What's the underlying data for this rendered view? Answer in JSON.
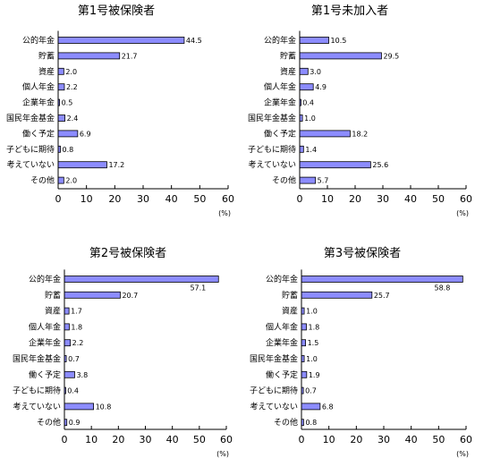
{
  "unit_label": "(%)",
  "chart_data": [
    {
      "type": "bar",
      "orientation": "horizontal",
      "title": "第1号被保険者",
      "categories": [
        "公的年金",
        "貯蓄",
        "資産",
        "個人年金",
        "企業年金",
        "国民年金基金",
        "働く予定",
        "子どもに期待",
        "考えていない",
        "その他"
      ],
      "values": [
        44.5,
        21.7,
        2.0,
        2.2,
        0.5,
        2.4,
        6.9,
        0.8,
        17.2,
        2.0
      ],
      "value_labels": [
        "44.5",
        "21.7",
        "2.0",
        "2.2",
        "0.5",
        "2.4",
        "6.9",
        "0.8",
        "17.2",
        "2.0"
      ],
      "xlim": [
        0,
        60
      ],
      "xticks": [
        0,
        10,
        20,
        30,
        40,
        50,
        60
      ],
      "grid": false,
      "bar_color": "#8c8cff"
    },
    {
      "type": "bar",
      "orientation": "horizontal",
      "title": "第1号未加入者",
      "categories": [
        "公的年金",
        "貯蓄",
        "資産",
        "個人年金",
        "企業年金",
        "国民年金基金",
        "働く予定",
        "子どもに期待",
        "考えていない",
        "その他"
      ],
      "values": [
        10.5,
        29.5,
        3.0,
        4.9,
        0.4,
        1.0,
        18.2,
        1.4,
        25.6,
        5.7
      ],
      "value_labels": [
        "10.5",
        "29.5",
        "3.0",
        "4.9",
        "0.4",
        "1.0",
        "18.2",
        "1.4",
        "25.6",
        "5.7"
      ],
      "xlim": [
        0,
        60
      ],
      "xticks": [
        0,
        10,
        20,
        30,
        40,
        50,
        60
      ],
      "grid": false,
      "bar_color": "#8c8cff"
    },
    {
      "type": "bar",
      "orientation": "horizontal",
      "title": "第2号被保険者",
      "categories": [
        "公的年金",
        "貯蓄",
        "資産",
        "個人年金",
        "企業年金",
        "国民年金基金",
        "働く予定",
        "子どもに期待",
        "考えていない",
        "その他"
      ],
      "values": [
        57.1,
        20.7,
        1.7,
        1.8,
        2.2,
        0.7,
        3.8,
        0.4,
        10.8,
        0.9
      ],
      "value_labels": [
        "57.1",
        "20.7",
        "1.7",
        "1.8",
        "2.2",
        "0.7",
        "3.8",
        "0.4",
        "10.8",
        "0.9"
      ],
      "xlim": [
        0,
        60
      ],
      "xticks": [
        0,
        10,
        20,
        30,
        40,
        50,
        60
      ],
      "grid": false,
      "bar_color": "#8c8cff"
    },
    {
      "type": "bar",
      "orientation": "horizontal",
      "title": "第3号被保険者",
      "categories": [
        "公的年金",
        "貯蓄",
        "資産",
        "個人年金",
        "企業年金",
        "国民年金基金",
        "働く予定",
        "子どもに期待",
        "考えていない",
        "その他"
      ],
      "values": [
        58.8,
        25.7,
        1.0,
        1.8,
        1.5,
        1.0,
        1.9,
        0.7,
        6.8,
        0.8
      ],
      "value_labels": [
        "58.8",
        "25.7",
        "1.0",
        "1.8",
        "1.5",
        "1.0",
        "1.9",
        "0.7",
        "6.8",
        "0.8"
      ],
      "xlim": [
        0,
        60
      ],
      "xticks": [
        0,
        10,
        20,
        30,
        40,
        50,
        60
      ],
      "grid": false,
      "bar_color": "#8c8cff"
    }
  ]
}
